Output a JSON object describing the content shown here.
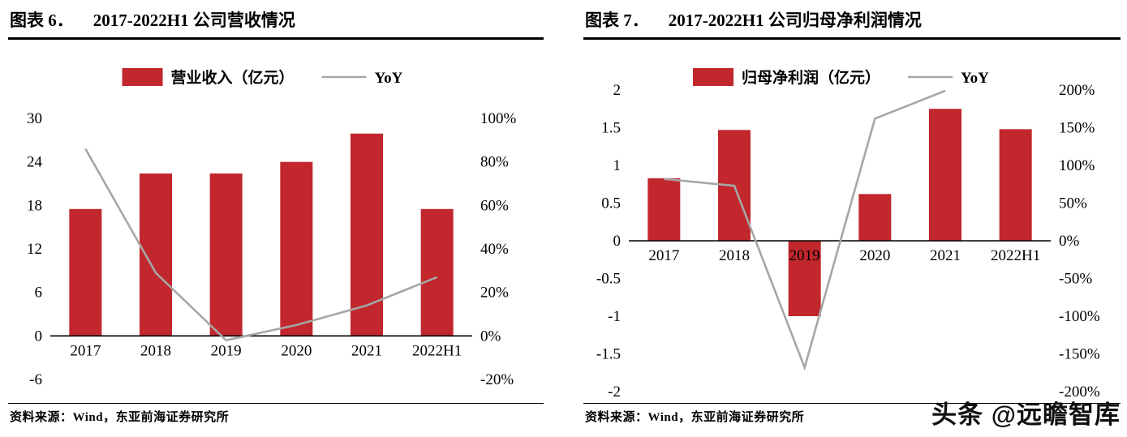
{
  "colors": {
    "bar": "#c1272d",
    "line": "#a6a6a6",
    "axis": "#000000"
  },
  "watermark": "头条 @远瞻智库",
  "chart_data": [
    {
      "type": "bar+line",
      "figure_label": "图表 6．",
      "title": "2017-2022H1 公司营收情况",
      "categories": [
        "2017",
        "2018",
        "2019",
        "2020",
        "2021",
        "2022H1"
      ],
      "series": [
        {
          "name": "营业收入（亿元）",
          "type": "bar",
          "axis": "left",
          "values": [
            17.5,
            22.4,
            22.4,
            24.0,
            27.9,
            17.5
          ]
        },
        {
          "name": "YoY",
          "type": "line",
          "axis": "right",
          "values": [
            86,
            29,
            -2,
            5,
            14,
            27
          ]
        }
      ],
      "left_axis": {
        "max": 30,
        "min": -6,
        "step": 6,
        "ticks": [
          "30",
          "24",
          "18",
          "12",
          "6",
          "0",
          "-6"
        ]
      },
      "right_axis": {
        "max": 100,
        "min": -20,
        "step": 20,
        "ticks": [
          "100%",
          "80%",
          "60%",
          "40%",
          "20%",
          "0%",
          "-20%"
        ]
      },
      "legend_position": "top",
      "grid": false,
      "source": "资料来源：Wind，东亚前海证券研究所"
    },
    {
      "type": "bar+line",
      "figure_label": "图表 7．",
      "title": "2017-2022H1 公司归母净利润情况",
      "categories": [
        "2017",
        "2018",
        "2019",
        "2020",
        "2021",
        "2022H1"
      ],
      "series": [
        {
          "name": "归母净利润（亿元）",
          "type": "bar",
          "axis": "left",
          "values": [
            0.83,
            1.47,
            -1.0,
            0.62,
            1.75,
            1.48
          ]
        },
        {
          "name": "YoY",
          "type": "line",
          "axis": "right",
          "values": [
            82,
            73,
            -168,
            162,
            199,
            null
          ]
        }
      ],
      "left_axis": {
        "max": 2,
        "min": -2,
        "step": 0.5,
        "ticks": [
          "2",
          "1.5",
          "1",
          "0.5",
          "0",
          "-0.5",
          "-1",
          "-1.5",
          "-2"
        ]
      },
      "right_axis": {
        "max": 200,
        "min": -200,
        "step": 50,
        "ticks": [
          "200%",
          "150%",
          "100%",
          "50%",
          "0%",
          "-50%",
          "-100%",
          "-150%",
          "-200%"
        ]
      },
      "legend_position": "top",
      "grid": false,
      "source": "资料来源：Wind，东亚前海证券研究所"
    }
  ]
}
